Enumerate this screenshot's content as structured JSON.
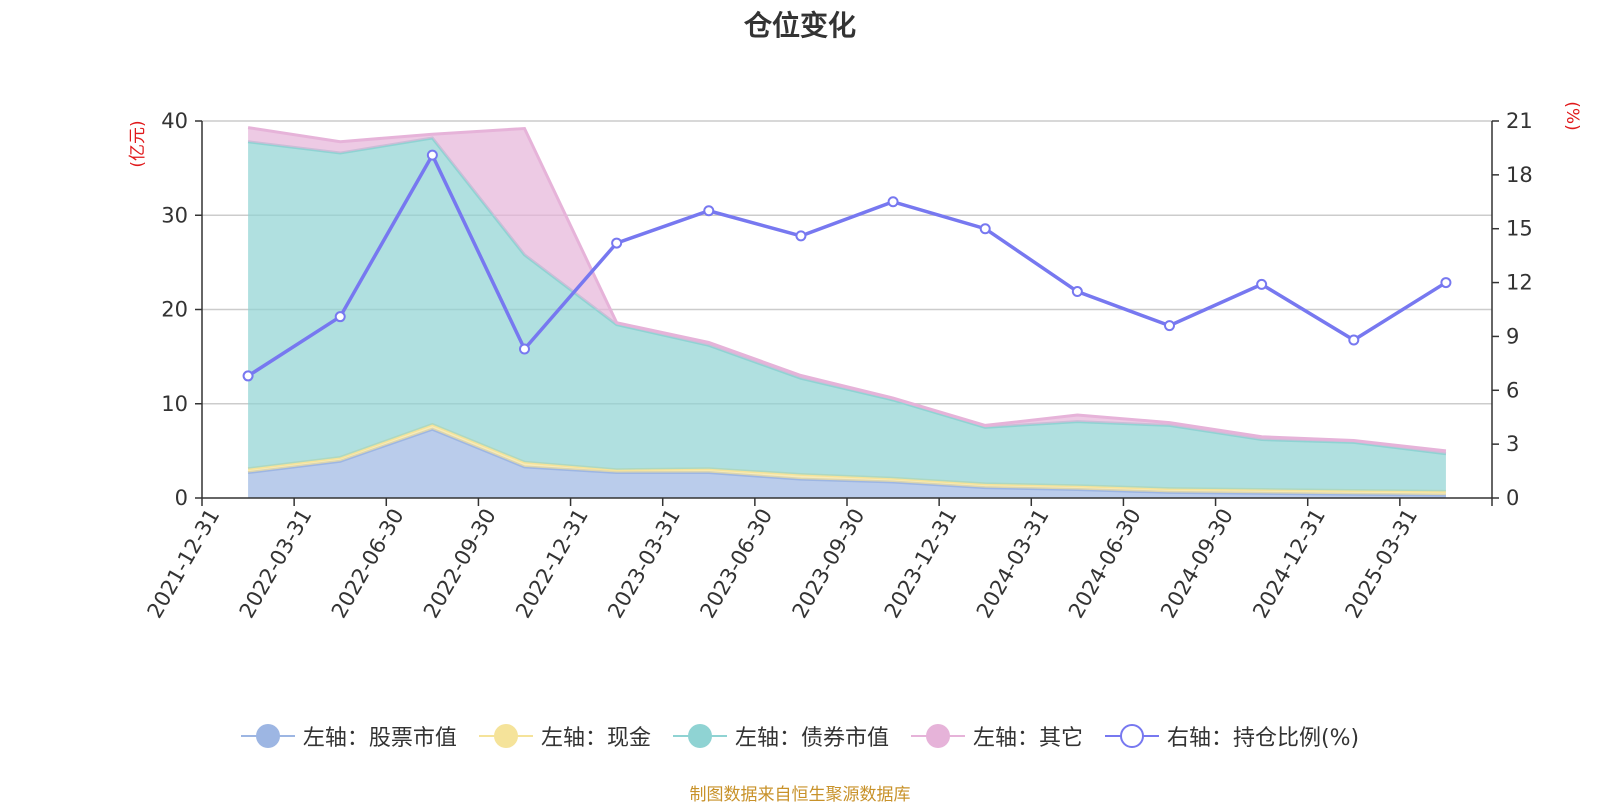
{
  "colors": {
    "stock": "#9db6e3",
    "cash": "#f5e39a",
    "bond": "#8fd3d3",
    "other": "#e6b3d9",
    "ratio": "#7778f0",
    "axis_unit": "#e0191b",
    "source": "#c8922a"
  },
  "source_note": "制图数据来自恒生聚源数据库",
  "chart_data": {
    "type": "area",
    "title": "仓位变化",
    "left_axis_unit": "(亿元)",
    "right_axis_unit": "(%)",
    "ylim_left": [
      0,
      40
    ],
    "ylim_right": [
      0,
      21
    ],
    "yticks_left": [
      "0",
      "10",
      "20",
      "30",
      "40"
    ],
    "yticks_right": [
      "0",
      "3",
      "6",
      "9",
      "12",
      "15",
      "18",
      "21"
    ],
    "grid": true,
    "legend_position": "bottom",
    "x": [
      "2021-12-31",
      "2022-03-31",
      "2022-06-30",
      "2022-09-30",
      "2022-12-31",
      "2023-03-31",
      "2023-06-30",
      "2023-09-30",
      "2023-12-31",
      "2024-03-31",
      "2024-06-30",
      "2024-09-30",
      "2024-12-31",
      "2025-03-31"
    ],
    "series": [
      {
        "name": "左轴：股票市值",
        "axis": "left",
        "stacked": true,
        "values": [
          2.7,
          3.9,
          7.3,
          3.3,
          2.7,
          2.7,
          2.0,
          1.7,
          1.1,
          0.9,
          0.6,
          0.5,
          0.4,
          0.3
        ]
      },
      {
        "name": "左轴：现金",
        "axis": "left",
        "stacked": true,
        "values": [
          0.4,
          0.4,
          0.5,
          0.5,
          0.3,
          0.4,
          0.5,
          0.4,
          0.4,
          0.4,
          0.4,
          0.4,
          0.4,
          0.4
        ]
      },
      {
        "name": "左轴：债券市值",
        "axis": "left",
        "stacked": true,
        "values": [
          34.7,
          32.3,
          30.4,
          22.0,
          15.4,
          13.1,
          10.2,
          8.3,
          6.0,
          6.8,
          6.7,
          5.3,
          5.1,
          4.0
        ]
      },
      {
        "name": "左轴：其它",
        "axis": "left",
        "stacked": true,
        "values": [
          1.5,
          1.2,
          0.4,
          13.4,
          0.2,
          0.3,
          0.3,
          0.2,
          0.2,
          0.7,
          0.3,
          0.3,
          0.2,
          0.3
        ]
      },
      {
        "name": "右轴：持仓比例(%)",
        "axis": "right",
        "type": "line",
        "values": [
          6.8,
          10.1,
          19.1,
          8.3,
          14.2,
          16.0,
          14.6,
          16.5,
          15.0,
          11.5,
          9.6,
          11.9,
          8.8,
          12.0
        ]
      }
    ]
  }
}
